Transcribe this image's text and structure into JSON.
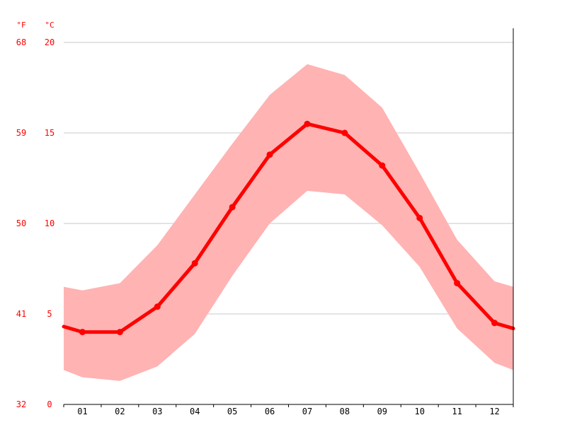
{
  "chart_data": {
    "type": "area",
    "categories": [
      "01",
      "02",
      "03",
      "04",
      "05",
      "06",
      "07",
      "08",
      "09",
      "10",
      "11",
      "12"
    ],
    "ylim": [
      0,
      20
    ],
    "y_ticks_c": [
      "0",
      "5",
      "10",
      "15",
      "20"
    ],
    "y_ticks_f": [
      "32",
      "41",
      "50",
      "59",
      "68"
    ],
    "unit_f": "°F",
    "unit_c": "°C",
    "grid": true,
    "series": [
      {
        "role": "mean",
        "values": [
          4.0,
          4.0,
          5.4,
          7.8,
          10.9,
          13.8,
          15.5,
          15.0,
          13.2,
          10.3,
          6.7,
          4.5
        ],
        "color": "#ff0000"
      },
      {
        "role": "max",
        "values": [
          6.3,
          6.7,
          8.8,
          11.6,
          14.4,
          17.1,
          18.8,
          18.2,
          16.4,
          12.8,
          9.1,
          6.8
        ],
        "color": "#ffb3b3"
      },
      {
        "role": "min",
        "values": [
          1.5,
          1.3,
          2.1,
          3.9,
          7.1,
          10.0,
          11.8,
          11.6,
          9.9,
          7.6,
          4.2,
          2.3
        ],
        "color": "#ffb3b3"
      }
    ],
    "edge_values": {
      "mean": [
        4.3,
        4.2
      ],
      "max": [
        6.5,
        6.5
      ],
      "min": [
        1.9,
        1.9
      ]
    }
  }
}
